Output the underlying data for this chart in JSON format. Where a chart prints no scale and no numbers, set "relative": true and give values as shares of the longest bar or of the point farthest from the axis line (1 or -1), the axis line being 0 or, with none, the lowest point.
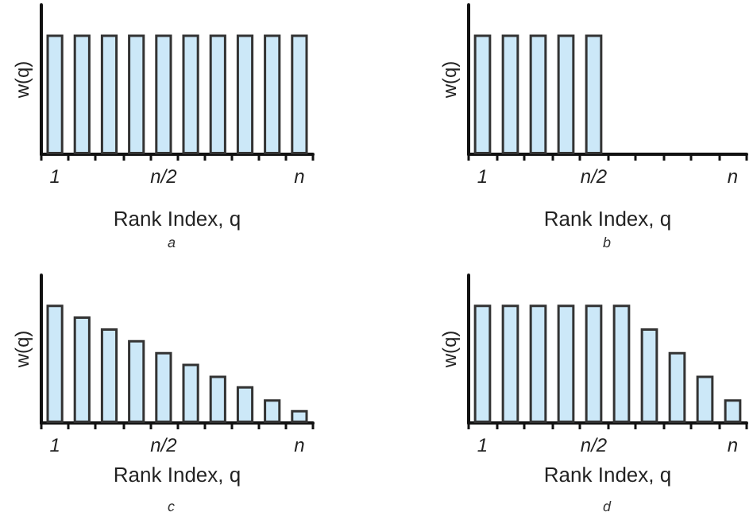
{
  "chart_data": [
    {
      "type": "bar",
      "relative": true,
      "xlabel": "Rank Index, q",
      "ylabel": "w(q)",
      "annotations": [
        "a"
      ],
      "color": "#cce8f8",
      "categories": [
        "1",
        null,
        null,
        null,
        "n/2",
        null,
        null,
        null,
        null,
        "n"
      ],
      "values": [
        1,
        1,
        1,
        1,
        1,
        1,
        1,
        1,
        1,
        1
      ]
    },
    {
      "type": "bar",
      "relative": true,
      "xlabel": "Rank Index, q",
      "ylabel": "w(q)",
      "annotations": [
        "b"
      ],
      "color": "#cce8f8",
      "categories": [
        "1",
        null,
        null,
        null,
        "n/2",
        null,
        null,
        null,
        null,
        "n"
      ],
      "values": [
        1,
        1,
        1,
        1,
        1,
        null,
        null,
        null,
        null,
        null
      ]
    },
    {
      "type": "bar",
      "relative": true,
      "xlabel": "Rank Index, q",
      "ylabel": "w(q)",
      "annotations": [
        "c"
      ],
      "color": "#cce8f8",
      "categories": [
        "1",
        null,
        null,
        null,
        "n/2",
        null,
        null,
        null,
        null,
        "n"
      ],
      "values": [
        1,
        0.9,
        0.8,
        0.7,
        0.6,
        0.5,
        0.4,
        0.31,
        0.2,
        0.11
      ]
    },
    {
      "type": "bar",
      "relative": true,
      "xlabel": "Rank Index, q",
      "ylabel": "w(q)",
      "annotations": [
        "d"
      ],
      "color": "#cce8f8",
      "categories": [
        "1",
        null,
        null,
        null,
        "n/2",
        null,
        null,
        null,
        null,
        "n"
      ],
      "values": [
        1,
        1,
        1,
        1,
        1,
        1,
        0.8,
        0.6,
        0.4,
        0.2
      ]
    }
  ]
}
